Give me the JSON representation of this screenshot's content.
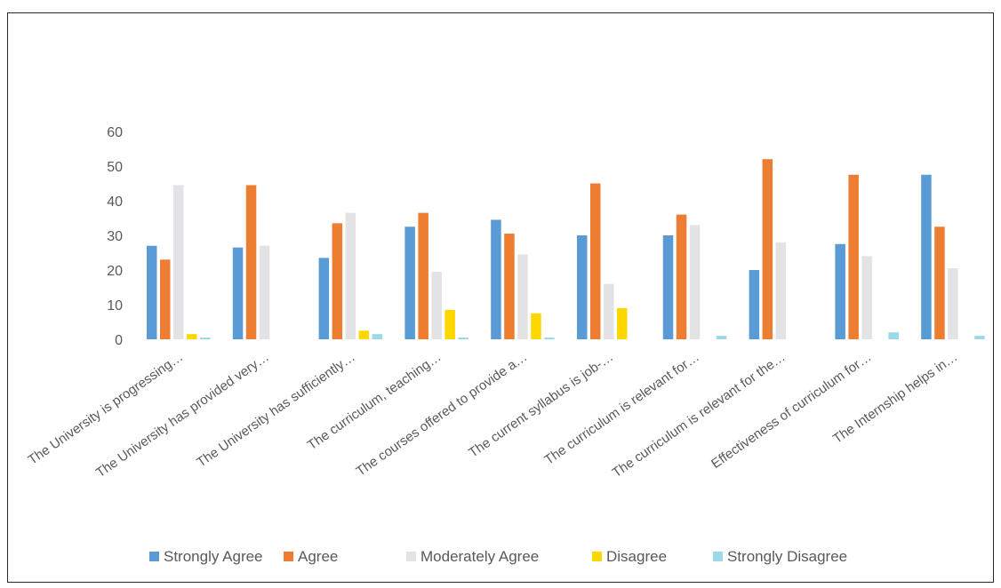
{
  "chart_data": {
    "type": "bar",
    "title": "",
    "xlabel": "",
    "ylabel": "",
    "ylim": [
      0,
      60
    ],
    "yticks": [
      0,
      10,
      20,
      30,
      40,
      50,
      60
    ],
    "grid": false,
    "legend_position": "bottom",
    "categories": [
      "The University is progressing…",
      "The University has provided very…",
      "The University has sufficiently…",
      "The curriculum, teaching…",
      "The courses offered to provide a…",
      "The current syllabus is job-…",
      "The curriculum is relevant for…",
      "The curriculum is relevant for the…",
      "Effectiveness of curriculum for…",
      "The Internship helps in…"
    ],
    "series": [
      {
        "name": "Strongly Agree",
        "color": "#5b9bd5",
        "values": [
          27,
          26.5,
          23.5,
          32.5,
          34.5,
          30,
          30,
          20,
          27.5,
          47.5
        ]
      },
      {
        "name": "Agree",
        "color": "#ed7d31",
        "values": [
          23,
          44.5,
          33.5,
          36.5,
          30.5,
          45,
          36,
          52,
          47.5,
          32.5
        ]
      },
      {
        "name": "Moderately Agree",
        "color": "#e3e3e6",
        "values": [
          44.5,
          27,
          36.5,
          19.5,
          24.5,
          16,
          33,
          28,
          24,
          20.5
        ]
      },
      {
        "name": "Disagree",
        "color": "#ffd700",
        "values": [
          1.5,
          0,
          2.5,
          8.5,
          7.5,
          9,
          0,
          0,
          0,
          0
        ]
      },
      {
        "name": "Strongly Disagree",
        "color": "#9ad8ea",
        "values": [
          0.5,
          0,
          1.5,
          0.5,
          0.5,
          0,
          1,
          0,
          2,
          1
        ]
      }
    ]
  }
}
